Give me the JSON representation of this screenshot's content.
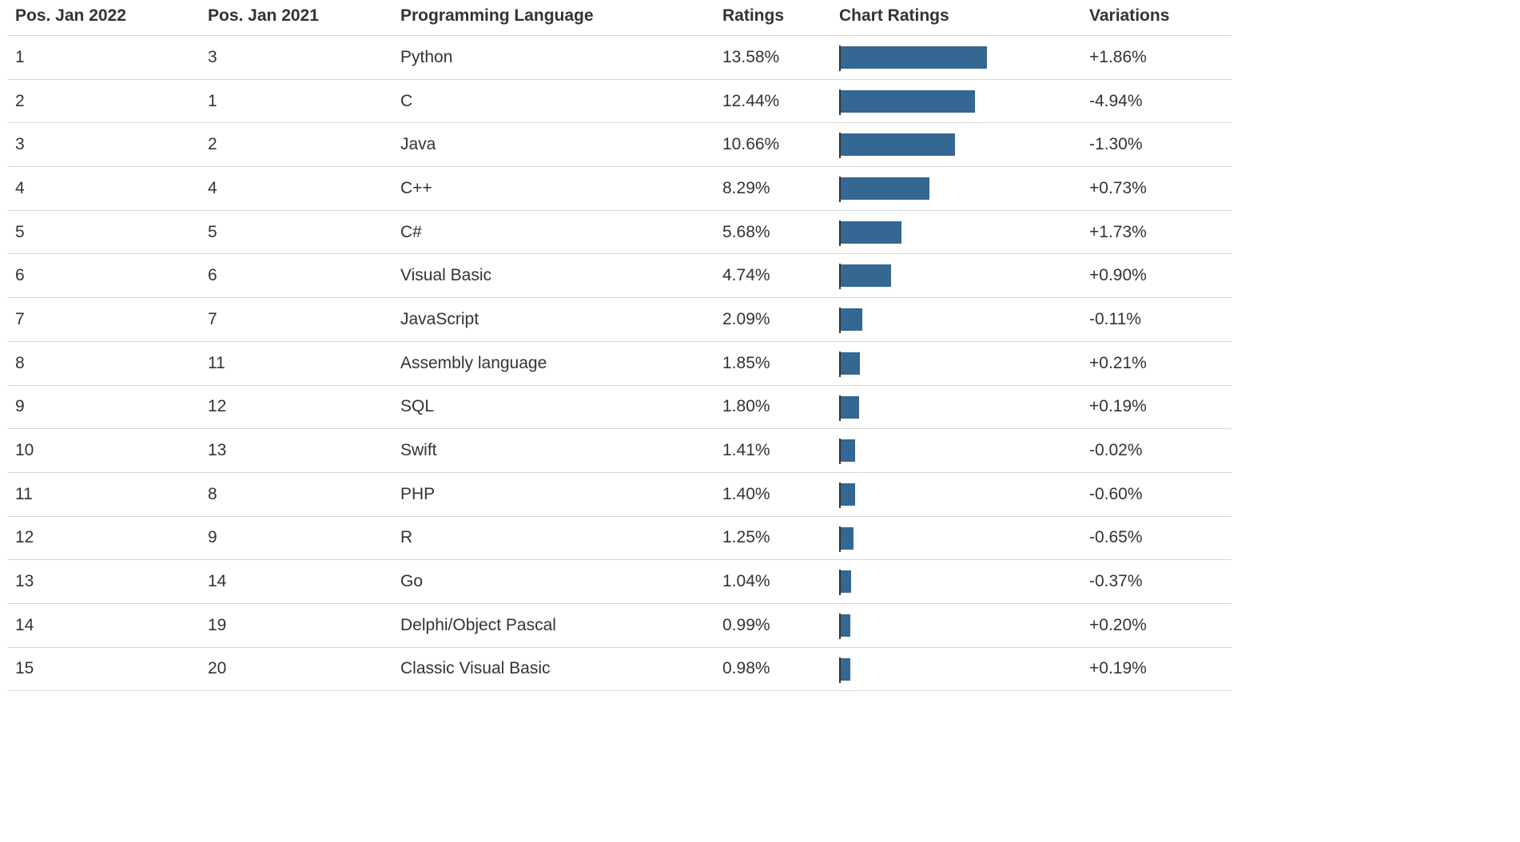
{
  "chart_data": {
    "type": "table",
    "columns": [
      "Pos. Jan 2022",
      "Pos. Jan 2021",
      "Programming Language",
      "Ratings",
      "Chart Ratings",
      "Variations"
    ],
    "bar_color": "#346792",
    "bar_max_value": 13.58,
    "rows": [
      {
        "pos2022": "1",
        "pos2021": "3",
        "language": "Python",
        "rating_text": "13.58%",
        "rating": 13.58,
        "variation": "+1.86%"
      },
      {
        "pos2022": "2",
        "pos2021": "1",
        "language": "C",
        "rating_text": "12.44%",
        "rating": 12.44,
        "variation": "-4.94%"
      },
      {
        "pos2022": "3",
        "pos2021": "2",
        "language": "Java",
        "rating_text": "10.66%",
        "rating": 10.66,
        "variation": "-1.30%"
      },
      {
        "pos2022": "4",
        "pos2021": "4",
        "language": "C++",
        "rating_text": "8.29%",
        "rating": 8.29,
        "variation": "+0.73%"
      },
      {
        "pos2022": "5",
        "pos2021": "5",
        "language": "C#",
        "rating_text": "5.68%",
        "rating": 5.68,
        "variation": "+1.73%"
      },
      {
        "pos2022": "6",
        "pos2021": "6",
        "language": "Visual Basic",
        "rating_text": "4.74%",
        "rating": 4.74,
        "variation": "+0.90%"
      },
      {
        "pos2022": "7",
        "pos2021": "7",
        "language": "JavaScript",
        "rating_text": "2.09%",
        "rating": 2.09,
        "variation": "-0.11%"
      },
      {
        "pos2022": "8",
        "pos2021": "11",
        "language": "Assembly language",
        "rating_text": "1.85%",
        "rating": 1.85,
        "variation": "+0.21%"
      },
      {
        "pos2022": "9",
        "pos2021": "12",
        "language": "SQL",
        "rating_text": "1.80%",
        "rating": 1.8,
        "variation": "+0.19%"
      },
      {
        "pos2022": "10",
        "pos2021": "13",
        "language": "Swift",
        "rating_text": "1.41%",
        "rating": 1.41,
        "variation": "-0.02%"
      },
      {
        "pos2022": "11",
        "pos2021": "8",
        "language": "PHP",
        "rating_text": "1.40%",
        "rating": 1.4,
        "variation": "-0.60%"
      },
      {
        "pos2022": "12",
        "pos2021": "9",
        "language": "R",
        "rating_text": "1.25%",
        "rating": 1.25,
        "variation": "-0.65%"
      },
      {
        "pos2022": "13",
        "pos2021": "14",
        "language": "Go",
        "rating_text": "1.04%",
        "rating": 1.04,
        "variation": "-0.37%"
      },
      {
        "pos2022": "14",
        "pos2021": "19",
        "language": "Delphi/Object Pascal",
        "rating_text": "0.99%",
        "rating": 0.99,
        "variation": "+0.20%"
      },
      {
        "pos2022": "15",
        "pos2021": "20",
        "language": "Classic Visual Basic",
        "rating_text": "0.98%",
        "rating": 0.98,
        "variation": "+0.19%"
      }
    ]
  }
}
